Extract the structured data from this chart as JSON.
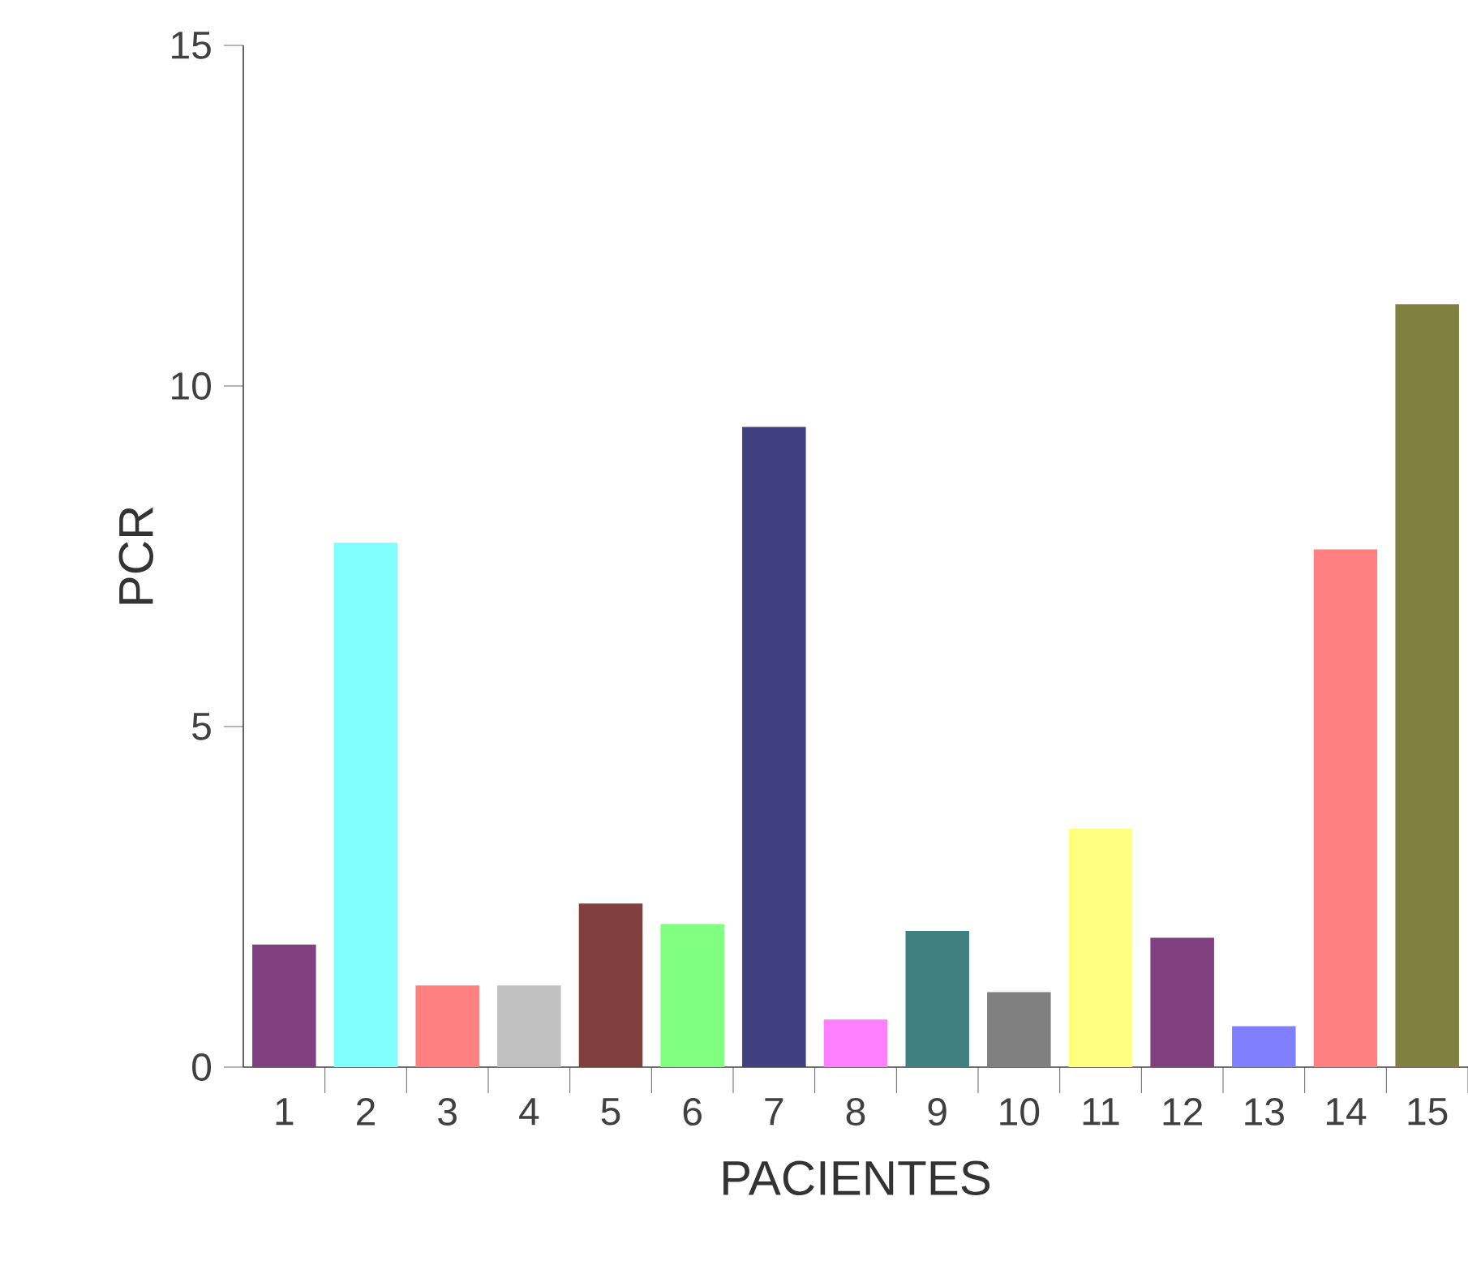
{
  "chart_data": {
    "type": "bar",
    "xlabel": "PACIENTES",
    "ylabel": "PCR",
    "categories": [
      "1",
      "2",
      "3",
      "4",
      "5",
      "6",
      "7",
      "8",
      "9",
      "10",
      "11",
      "12",
      "13",
      "14",
      "15"
    ],
    "values": [
      1.8,
      7.7,
      1.2,
      1.2,
      2.4,
      2.1,
      9.4,
      0.7,
      2.0,
      1.1,
      3.5,
      1.9,
      0.6,
      7.6,
      11.2
    ],
    "colors": [
      "#804080",
      "#80ffff",
      "#ff8080",
      "#c0c0c0",
      "#804040",
      "#80ff80",
      "#404080",
      "#ff80ff",
      "#408080",
      "#808080",
      "#ffff80",
      "#804080",
      "#8080ff",
      "#ff8080",
      "#808040"
    ],
    "ylim": [
      0,
      15
    ],
    "yticks": [
      0,
      5,
      10,
      15
    ],
    "grid": false
  }
}
